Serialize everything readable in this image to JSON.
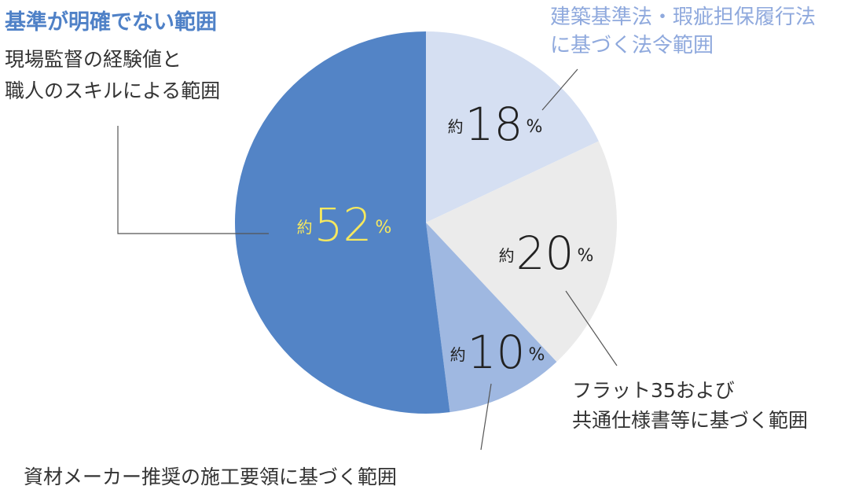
{
  "chart_data": {
    "type": "pie",
    "categories": [
      "建築基準法・瑕疵担保履行法\nに基づく法令範囲",
      "フラット35および\n共通仕様書等に基づく範囲",
      "資材メーカー推奨の施工要領に基づく範囲",
      "現場監督の経験値と\n職人のスキルによる範囲"
    ],
    "values": [
      18,
      20,
      10,
      52
    ],
    "colors": [
      "#d5dff2",
      "#ebebeb",
      "#9fb8e1",
      "#5384c6"
    ],
    "value_label_colors": [
      "#222222",
      "#222222",
      "#222222",
      "#f6e85e"
    ],
    "label_prefix": "約",
    "label_unit": "%",
    "annotation": "基準が明確でない範囲"
  }
}
